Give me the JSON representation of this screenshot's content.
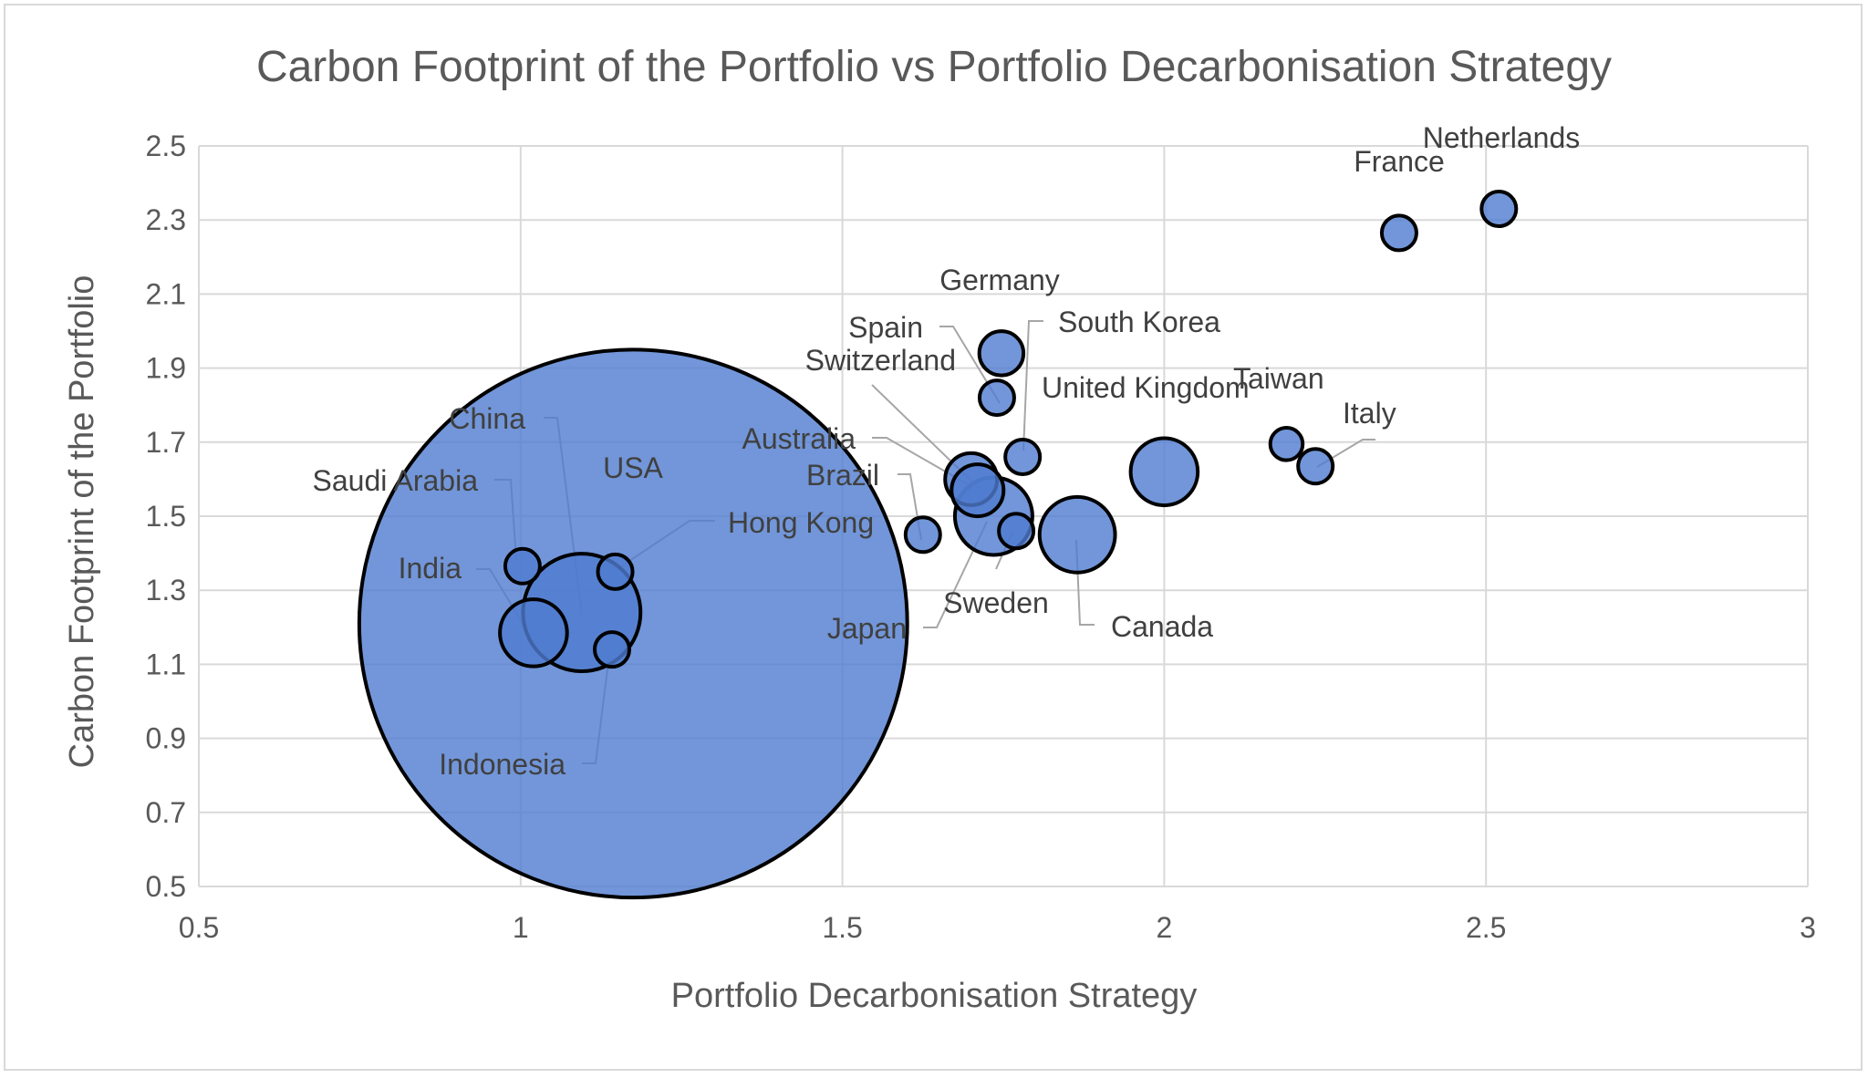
{
  "chart_data": {
    "type": "bubble",
    "title": "Carbon Footprint of the Portfolio vs Portfolio Decarbonisation Strategy",
    "xlabel": "Portfolio Decarbonisation Strategy",
    "ylabel": "Carbon Footprint of the Portfolio",
    "xlim": [
      0.5,
      3
    ],
    "ylim": [
      0.5,
      2.5
    ],
    "x_ticks": [
      "0.5",
      "1",
      "1.5",
      "2",
      "2.5",
      "3"
    ],
    "y_ticks": [
      "0.5",
      "0.7",
      "0.9",
      "1.1",
      "1.3",
      "1.5",
      "1.7",
      "1.9",
      "2.1",
      "2.3",
      "2.5"
    ],
    "grid": true,
    "colors": {
      "bubble": "#4f7ccf",
      "outline": "#000000",
      "leader": "#a6a6a6",
      "grid": "#d9d9d9"
    },
    "points": [
      {
        "name": "USA",
        "x": 1.175,
        "y": 1.21,
        "size": 100
      },
      {
        "name": "China",
        "x": 1.095,
        "y": 1.24,
        "size": 4.6
      },
      {
        "name": "India",
        "x": 1.02,
        "y": 1.185,
        "size": 1.5
      },
      {
        "name": "Saudi Arabia",
        "x": 1.003,
        "y": 1.365,
        "size": 0.4
      },
      {
        "name": "Hong Kong",
        "x": 1.147,
        "y": 1.35,
        "size": 0.4
      },
      {
        "name": "Indonesia",
        "x": 1.142,
        "y": 1.14,
        "size": 0.4
      },
      {
        "name": "Brazil",
        "x": 1.625,
        "y": 1.45,
        "size": 0.4
      },
      {
        "name": "Australia",
        "x": 1.7,
        "y": 1.6,
        "size": 0.9
      },
      {
        "name": "Switzerland",
        "x": 1.71,
        "y": 1.57,
        "size": 0.9
      },
      {
        "name": "Japan",
        "x": 1.735,
        "y": 1.5,
        "size": 2.0
      },
      {
        "name": "Sweden",
        "x": 1.77,
        "y": 1.46,
        "size": 0.4
      },
      {
        "name": "Spain",
        "x": 1.74,
        "y": 1.82,
        "size": 0.4
      },
      {
        "name": "Germany",
        "x": 1.747,
        "y": 1.94,
        "size": 0.65
      },
      {
        "name": "South Korea",
        "x": 1.78,
        "y": 1.66,
        "size": 0.4
      },
      {
        "name": "Canada",
        "x": 1.865,
        "y": 1.45,
        "size": 1.9
      },
      {
        "name": "United Kingdom",
        "x": 2.0,
        "y": 1.62,
        "size": 1.5
      },
      {
        "name": "Taiwan",
        "x": 2.19,
        "y": 1.695,
        "size": 0.35
      },
      {
        "name": "Italy",
        "x": 2.235,
        "y": 1.635,
        "size": 0.4
      },
      {
        "name": "France",
        "x": 2.365,
        "y": 2.265,
        "size": 0.4
      },
      {
        "name": "Netherlands",
        "x": 2.52,
        "y": 2.33,
        "size": 0.4
      }
    ]
  }
}
